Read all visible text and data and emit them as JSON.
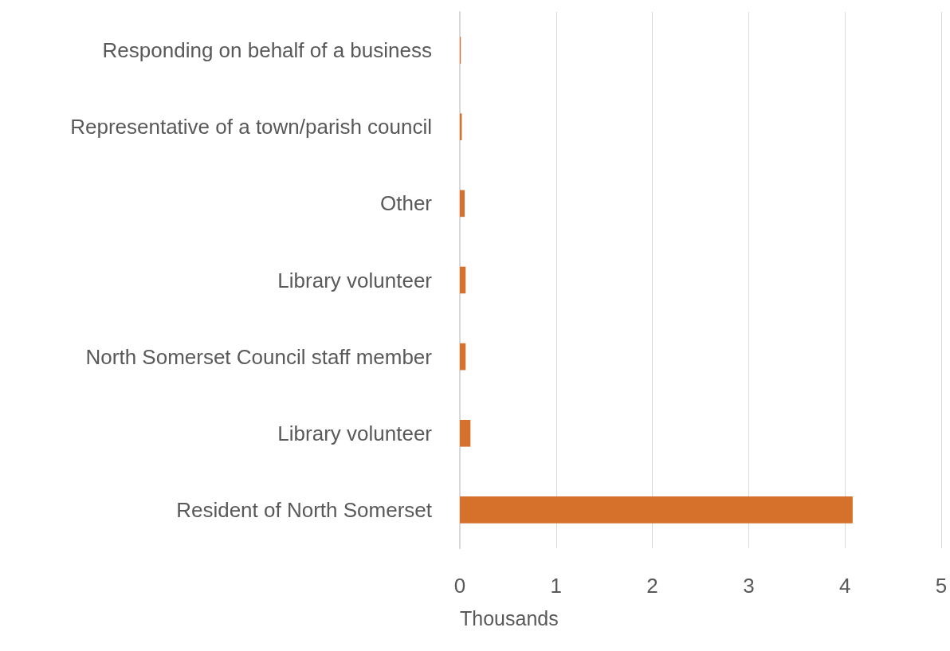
{
  "chart_data": {
    "type": "bar",
    "orientation": "horizontal",
    "xlabel": "Thousands",
    "categories": [
      "Responding on behalf of a business",
      "Representative of a town/parish council",
      "Other",
      "Library volunteer",
      "North Somerset Council staff member",
      "Library volunteer",
      "Resident of North Somerset"
    ],
    "values": [
      0.01,
      0.02,
      0.05,
      0.06,
      0.06,
      0.11,
      4.08
    ],
    "color": "#d5712a",
    "xlim": [
      0,
      5
    ],
    "xticks": [
      0,
      1,
      2,
      3,
      4,
      5
    ],
    "grid": "x"
  }
}
